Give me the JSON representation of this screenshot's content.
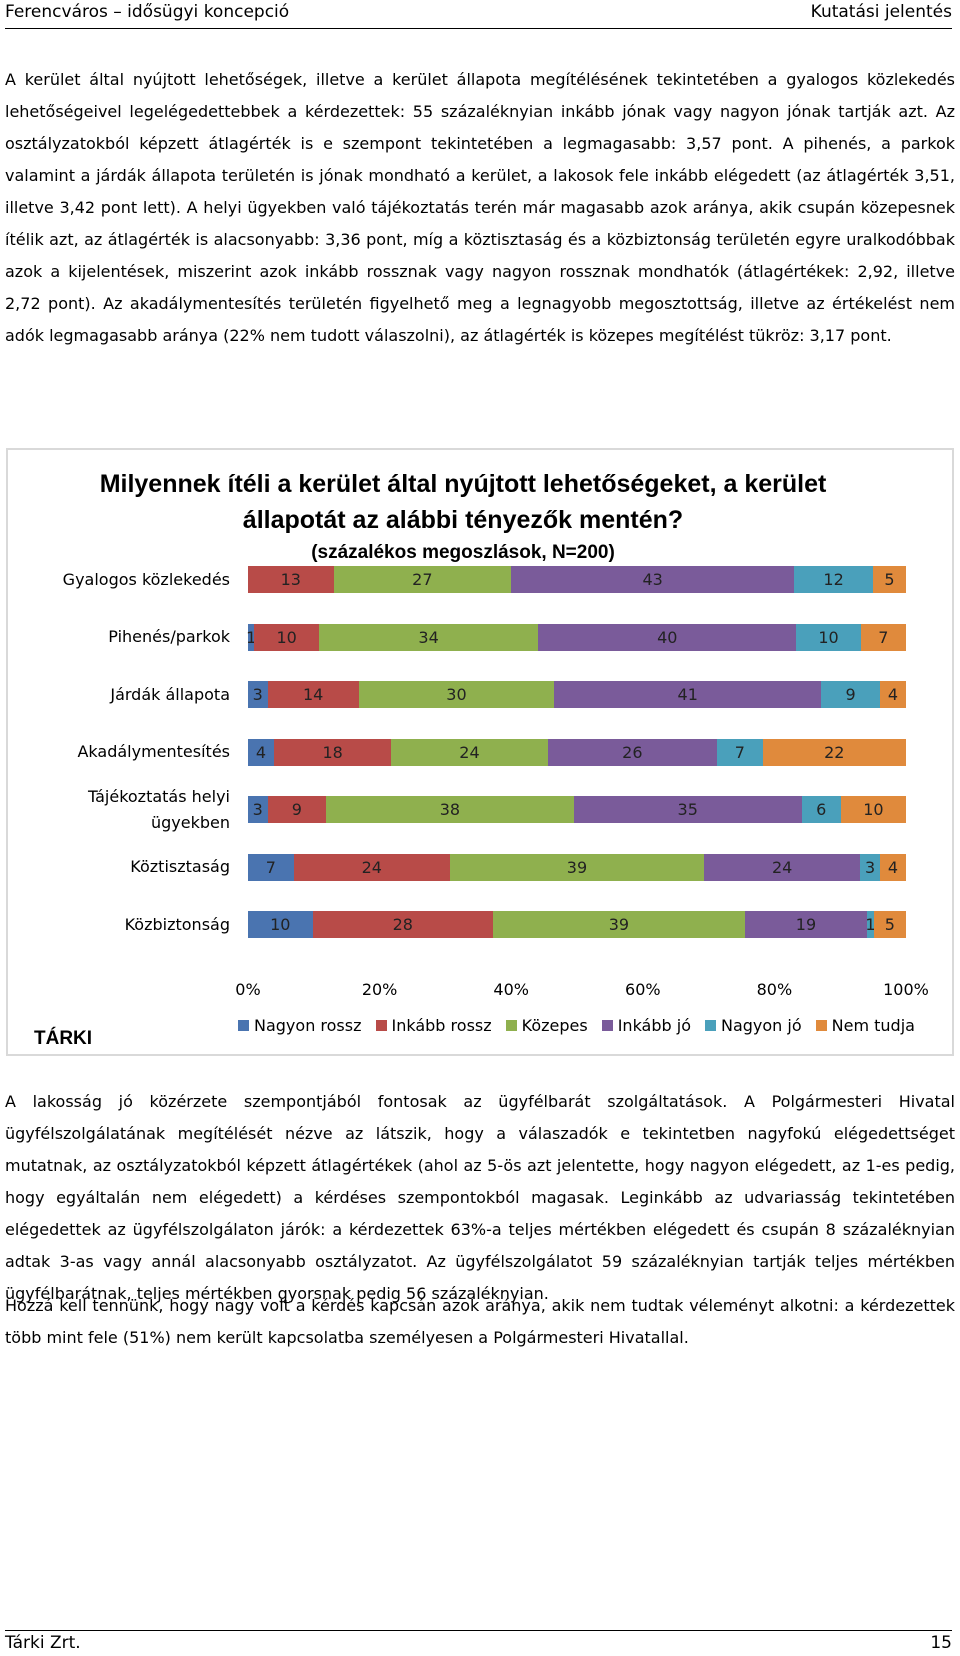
{
  "header": {
    "left": "Ferencváros – idősügyi koncepció",
    "right": "Kutatási jelentés"
  },
  "paragraphs": {
    "p1": "A kerület által nyújtott lehetőségek, illetve a kerület állapota megítélésének tekintetében a gyalogos közlekedés lehetőségeivel legelégedettebbek a kérdezettek: 55 százaléknyian inkább jónak vagy nagyon jónak tartják azt. Az osztályzatokból képzett átlagérték is e szempont tekintetében a legmagasabb: 3,57 pont. A pihenés, a parkok valamint a járdák állapota területén is jónak mondható a kerület, a lakosok fele inkább elégedett (az átlagérték 3,51, illetve 3,42 pont lett). A helyi ügyekben való tájékoztatás terén már magasabb azok aránya, akik csupán közepesnek ítélik azt, az átlagérték is alacsonyabb: 3,36 pont, míg a köztisztaság és a közbiztonság területén egyre uralkodóbbak azok a kijelentések, miszerint azok inkább rossznak vagy nagyon rossznak mondhatók (átlagértékek: 2,92, illetve 2,72 pont). Az akadálymentesítés területén figyelhető meg a legnagyobb megosztottság, illetve az értékelést nem adók legmagasabb aránya (22% nem tudott válaszolni), az átlagérték is közepes megítélést tükröz: 3,17 pont.",
    "p2": "A lakosság jó közérzete szempontjából fontosak az ügyfélbarát szolgáltatások. A Polgármesteri Hivatal ügyfélszolgálatának megítélését nézve az látszik, hogy a válaszadók e tekintetben nagyfokú elégedettséget mutatnak, az osztályzatokból képzett átlagértékek (ahol az 5-ös azt jelentette, hogy nagyon elégedett, az 1-es pedig, hogy egyáltalán nem elégedett) a kérdéses szempontokból magasak. Leginkább az udvariasság tekintetében elégedettek az ügyfélszolgálaton járók: a kérdezettek 63%-a teljes mértékben elégedett és csupán 8 százaléknyian adtak 3-as vagy annál alacsonyabb osztályzatot. Az ügyfélszolgálatot 59 százaléknyian tartják teljes mértékben ügyfélbarátnak, teljes mértékben gyorsnak pedig 56 százaléknyian.",
    "p3": "Hozzá kell tennünk, hogy nagy volt a kérdés kapcsán azok aránya, akik nem tudtak véleményt alkotni: a kérdezettek több mint fele (51%) nem került kapcsolatba személyesen a Polgármesteri Hivatallal."
  },
  "chart_data": {
    "type": "bar",
    "orientation": "horizontal-stacked-100",
    "title": "Milyennek ítéli a kerület által nyújtott lehetőségeket, a kerület állapotát az alábbi tényezők mentén?",
    "subtitle": "(százalékos megoszlások, N=200)",
    "categories": [
      "Gyalogos közlekedés",
      "Pihenés/parkok",
      "Járdák állapota",
      "Akadálymentesítés",
      "Tájékoztatás helyi ügyekben",
      "Köztisztaság",
      "Közbiztonság"
    ],
    "series": [
      {
        "name": "Nagyon rossz",
        "color": "#4a74b0",
        "values": [
          0,
          1,
          3,
          4,
          3,
          7,
          10
        ]
      },
      {
        "name": "Inkább rossz",
        "color": "#b84b48",
        "values": [
          13,
          10,
          14,
          18,
          9,
          24,
          28
        ]
      },
      {
        "name": "Közepes",
        "color": "#8fb04e",
        "values": [
          27,
          34,
          30,
          24,
          38,
          39,
          39
        ]
      },
      {
        "name": "Inkább jó",
        "color": "#7a5b9a",
        "values": [
          43,
          40,
          41,
          26,
          35,
          24,
          19
        ]
      },
      {
        "name": "Nagyon jó",
        "color": "#4aa0bb",
        "values": [
          12,
          10,
          9,
          7,
          6,
          3,
          1
        ]
      },
      {
        "name": "Nem tudja",
        "color": "#e08a3c",
        "values": [
          5,
          7,
          4,
          22,
          10,
          4,
          5
        ]
      }
    ],
    "x_ticks": [
      "0%",
      "20%",
      "40%",
      "60%",
      "80%",
      "100%"
    ],
    "xlim": [
      0,
      100
    ],
    "legend_position": "bottom",
    "grid": false
  },
  "chart_brand": "TÁRKI",
  "footer": {
    "left": "Tárki Zrt.",
    "right": "15"
  }
}
